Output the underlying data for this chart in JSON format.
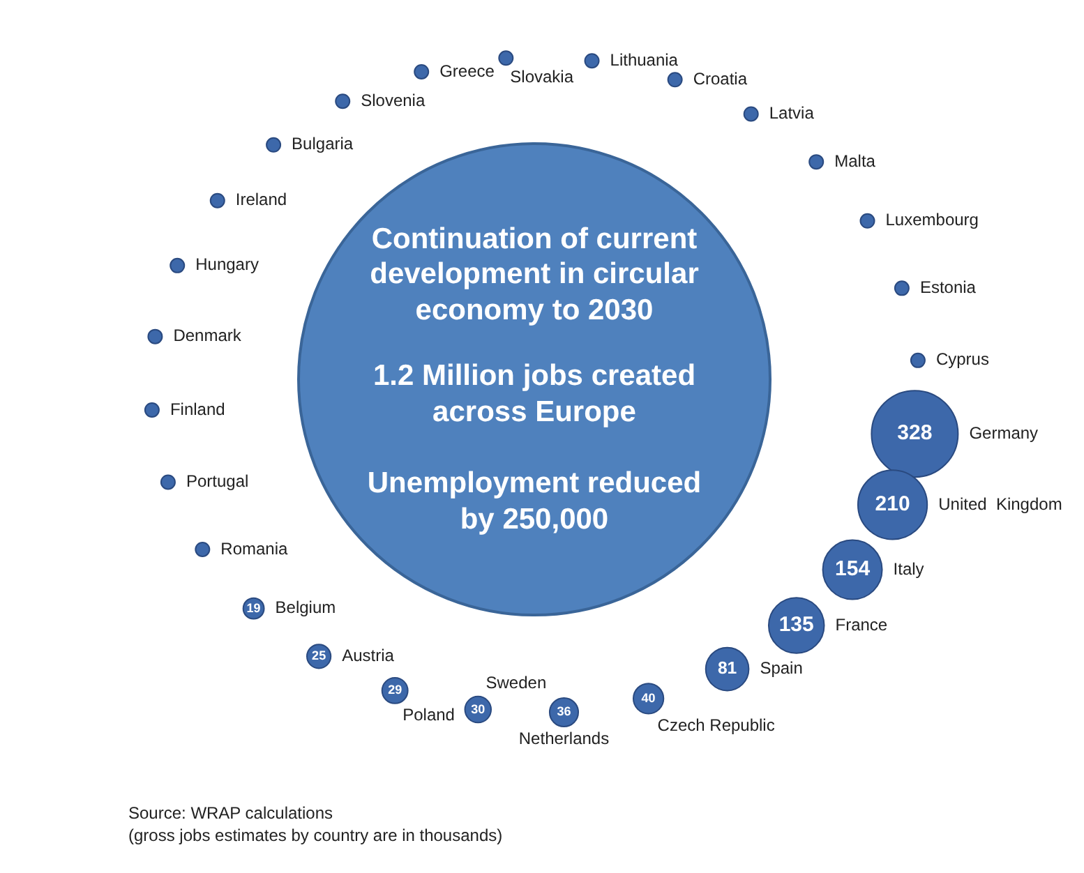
{
  "chart_data": {
    "type": "other",
    "color": "#3d68aa",
    "data_labels": true,
    "title": "Continuation of current development in circular economy to 2030",
    "subtitle": "1.2 Million jobs created across Europe\n\nUnemployment reduced by 250,000",
    "annotations": [
      "Source: WRAP calculations",
      "(gross jobs estimates by country are in thousands)"
    ],
    "categories": [
      "Greece",
      "Slovakia",
      "Lithuania",
      "Croatia",
      "Latvia",
      "Malta",
      "Luxembourg",
      "Estonia",
      "Cyprus",
      "Germany",
      "United  Kingdom",
      "Italy",
      "France",
      "Spain",
      "Czech Republic",
      "Netherlands",
      "Sweden",
      "Poland",
      "Austria",
      "Belgium",
      "Romania",
      "Portugal",
      "Finland",
      "Denmark",
      "Hungary",
      "Ireland",
      "Bulgaria",
      "Slovenia"
    ],
    "values": [
      null,
      null,
      null,
      null,
      null,
      null,
      null,
      null,
      null,
      328,
      210,
      154,
      135,
      81,
      40,
      36,
      30,
      29,
      25,
      19,
      null,
      null,
      null,
      null,
      null,
      null,
      null,
      null
    ]
  }
}
